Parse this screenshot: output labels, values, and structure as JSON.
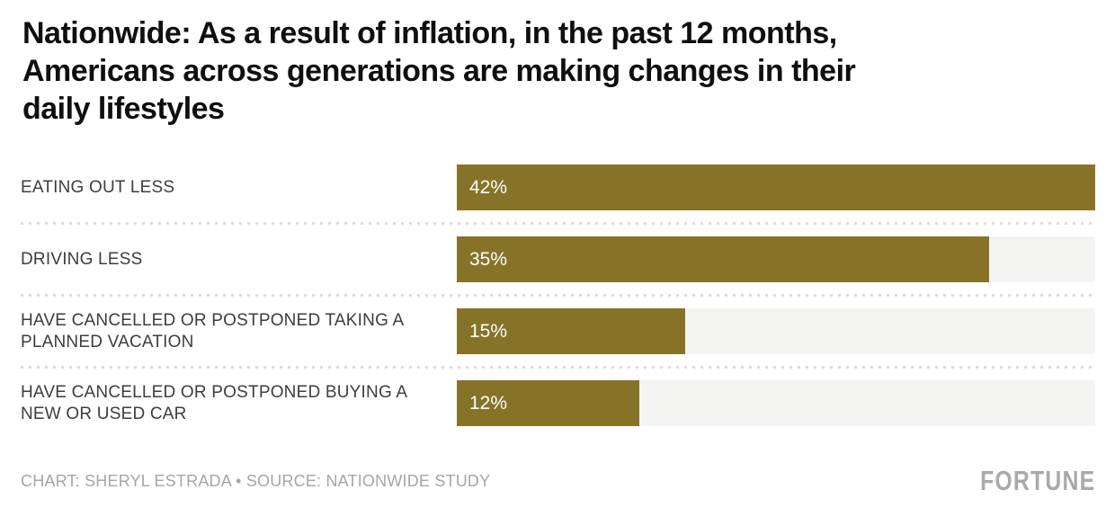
{
  "title": "Nationwide: As a result of inflation, in the past 12 months, Americans across generations are making changes in their daily lifestyles",
  "chart_data": {
    "type": "bar",
    "orientation": "horizontal",
    "title": "Nationwide: As a result of inflation, in the past 12 months, Americans across generations are making changes in their daily lifestyles",
    "categories": [
      "EATING OUT LESS",
      "DRIVING LESS",
      "HAVE CANCELLED OR POSTPONED TAKING A PLANNED VACATION",
      "HAVE CANCELLED OR POSTPONED BUYING A NEW OR USED CAR"
    ],
    "values": [
      42,
      35,
      15,
      12
    ],
    "value_labels": [
      "42%",
      "35%",
      "15%",
      "12%"
    ],
    "xlim": [
      0,
      42
    ],
    "grid": false,
    "legend": false,
    "bar_color": "#867327",
    "track_color": "#f3f3f2",
    "value_label_color": "#ffffff",
    "category_label_color": "#3d3d3d",
    "divider_color": "#dcdcdc"
  },
  "footer": {
    "credit": "CHART: SHERYL ESTRADA • SOURCE: NATIONWIDE STUDY",
    "logo": "FORTUNE"
  }
}
